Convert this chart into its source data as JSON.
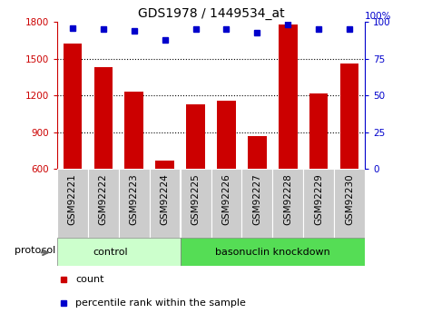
{
  "title": "GDS1978 / 1449534_at",
  "samples": [
    "GSM92221",
    "GSM92222",
    "GSM92223",
    "GSM92224",
    "GSM92225",
    "GSM92226",
    "GSM92227",
    "GSM92228",
    "GSM92229",
    "GSM92230"
  ],
  "counts": [
    1620,
    1430,
    1230,
    670,
    1130,
    1160,
    870,
    1780,
    1215,
    1460
  ],
  "percentile_ranks": [
    96,
    95,
    94,
    88,
    95,
    95,
    93,
    98,
    95,
    95
  ],
  "ylim_left": [
    600,
    1800
  ],
  "ylim_right": [
    0,
    100
  ],
  "yticks_left": [
    600,
    900,
    1200,
    1500,
    1800
  ],
  "yticks_right": [
    0,
    25,
    50,
    75,
    100
  ],
  "bar_color": "#cc0000",
  "dot_color": "#0000cc",
  "grid_color": "#000000",
  "control_samples": 4,
  "control_label": "control",
  "treatment_label": "basonuclin knockdown",
  "protocol_label": "protocol",
  "legend_count": "count",
  "legend_percentile": "percentile rank within the sample",
  "control_bg": "#ccffcc",
  "treatment_bg": "#55dd55",
  "xticklabel_bg": "#cccccc",
  "fig_width": 4.65,
  "fig_height": 3.45,
  "title_fontsize": 10,
  "tick_fontsize": 7.5,
  "label_fontsize": 8
}
